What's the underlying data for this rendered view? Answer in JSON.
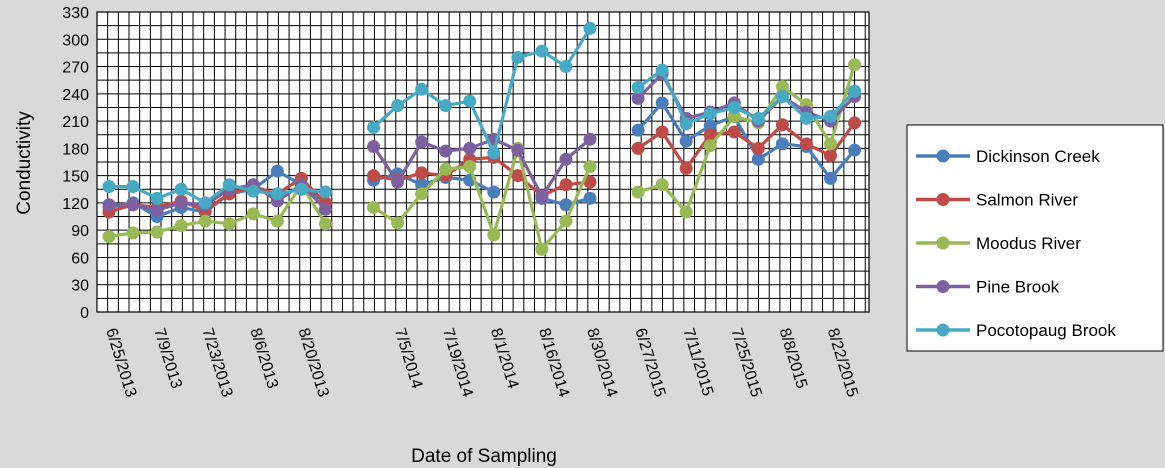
{
  "chart_data": {
    "type": "line",
    "title": "",
    "xlabel": "Date of Sampling",
    "ylabel": "Conductivity",
    "ylim": [
      0,
      330
    ],
    "yticks": [
      0,
      30,
      60,
      90,
      120,
      150,
      180,
      210,
      240,
      270,
      300,
      330
    ],
    "grid": true,
    "legend_position": "right",
    "x_tick_labels": [
      "6/25/2013",
      "7/9/2013",
      "7/23/2013",
      "8/6/2013",
      "8/20/2013",
      "7/5/2014",
      "7/19/2014",
      "8/1/2014",
      "8/16/2014",
      "8/30/2014",
      "6/27/2015",
      "7/11/2015",
      "7/25/2015",
      "8/8/2015",
      "8/22/2015"
    ],
    "segments": [
      {
        "year": "2013",
        "count": 10
      },
      {
        "year": "2014",
        "count": 10
      },
      {
        "year": "2015",
        "count": 10
      }
    ],
    "series": [
      {
        "name": "Dickinson Creek",
        "color": "#4a7ebb",
        "values": [
          115,
          120,
          105,
          115,
          110,
          130,
          135,
          155,
          140,
          120,
          145,
          152,
          140,
          148,
          145,
          132,
          null,
          125,
          118,
          125,
          200,
          230,
          188,
          205,
          215,
          168,
          185,
          182,
          147,
          178
        ]
      },
      {
        "name": "Salmon River",
        "color": "#be4b48",
        "values": [
          110,
          118,
          115,
          122,
          112,
          130,
          138,
          130,
          147,
          120,
          150,
          145,
          153,
          150,
          168,
          170,
          150,
          128,
          140,
          143,
          180,
          198,
          158,
          195,
          198,
          180,
          206,
          185,
          172,
          208
        ]
      },
      {
        "name": "Moodus River",
        "color": "#98b954",
        "values": [
          83,
          87,
          88,
          95,
          100,
          97,
          108,
          100,
          140,
          97,
          115,
          98,
          130,
          157,
          160,
          85,
          180,
          69,
          100,
          160,
          132,
          140,
          110,
          183,
          215,
          208,
          248,
          228,
          185,
          272
        ]
      },
      {
        "name": "Pine Brook",
        "color": "#7d60a0",
        "values": [
          118,
          118,
          112,
          120,
          118,
          135,
          140,
          122,
          140,
          113,
          182,
          143,
          187,
          177,
          180,
          190,
          178,
          127,
          168,
          190,
          235,
          262,
          213,
          220,
          230,
          210,
          237,
          220,
          210,
          237
        ]
      },
      {
        "name": "Pocotopaug Brook",
        "color": "#46aac5",
        "values": [
          138,
          138,
          125,
          135,
          120,
          140,
          133,
          130,
          135,
          132,
          203,
          227,
          245,
          227,
          232,
          175,
          280,
          287,
          270,
          312,
          247,
          266,
          207,
          218,
          225,
          213,
          237,
          213,
          215,
          243
        ]
      }
    ]
  }
}
